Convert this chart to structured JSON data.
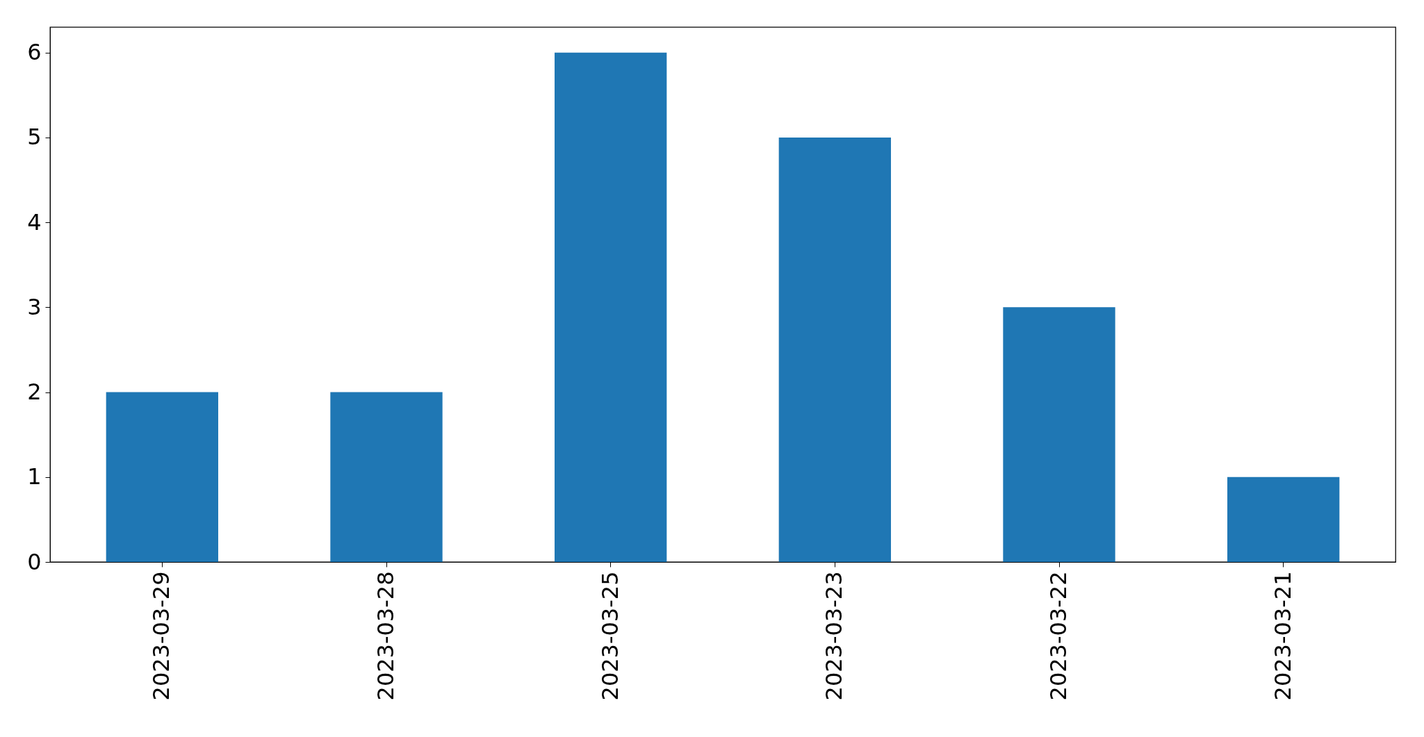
{
  "chart_data": {
    "type": "bar",
    "categories": [
      "2023-03-29",
      "2023-03-28",
      "2023-03-25",
      "2023-03-23",
      "2023-03-22",
      "2023-03-21"
    ],
    "values": [
      2,
      2,
      6,
      5,
      3,
      1
    ],
    "color": "#1f77b4",
    "ylim": [
      0,
      6.3
    ],
    "yticks": [
      0,
      1,
      2,
      3,
      4,
      5,
      6
    ]
  }
}
